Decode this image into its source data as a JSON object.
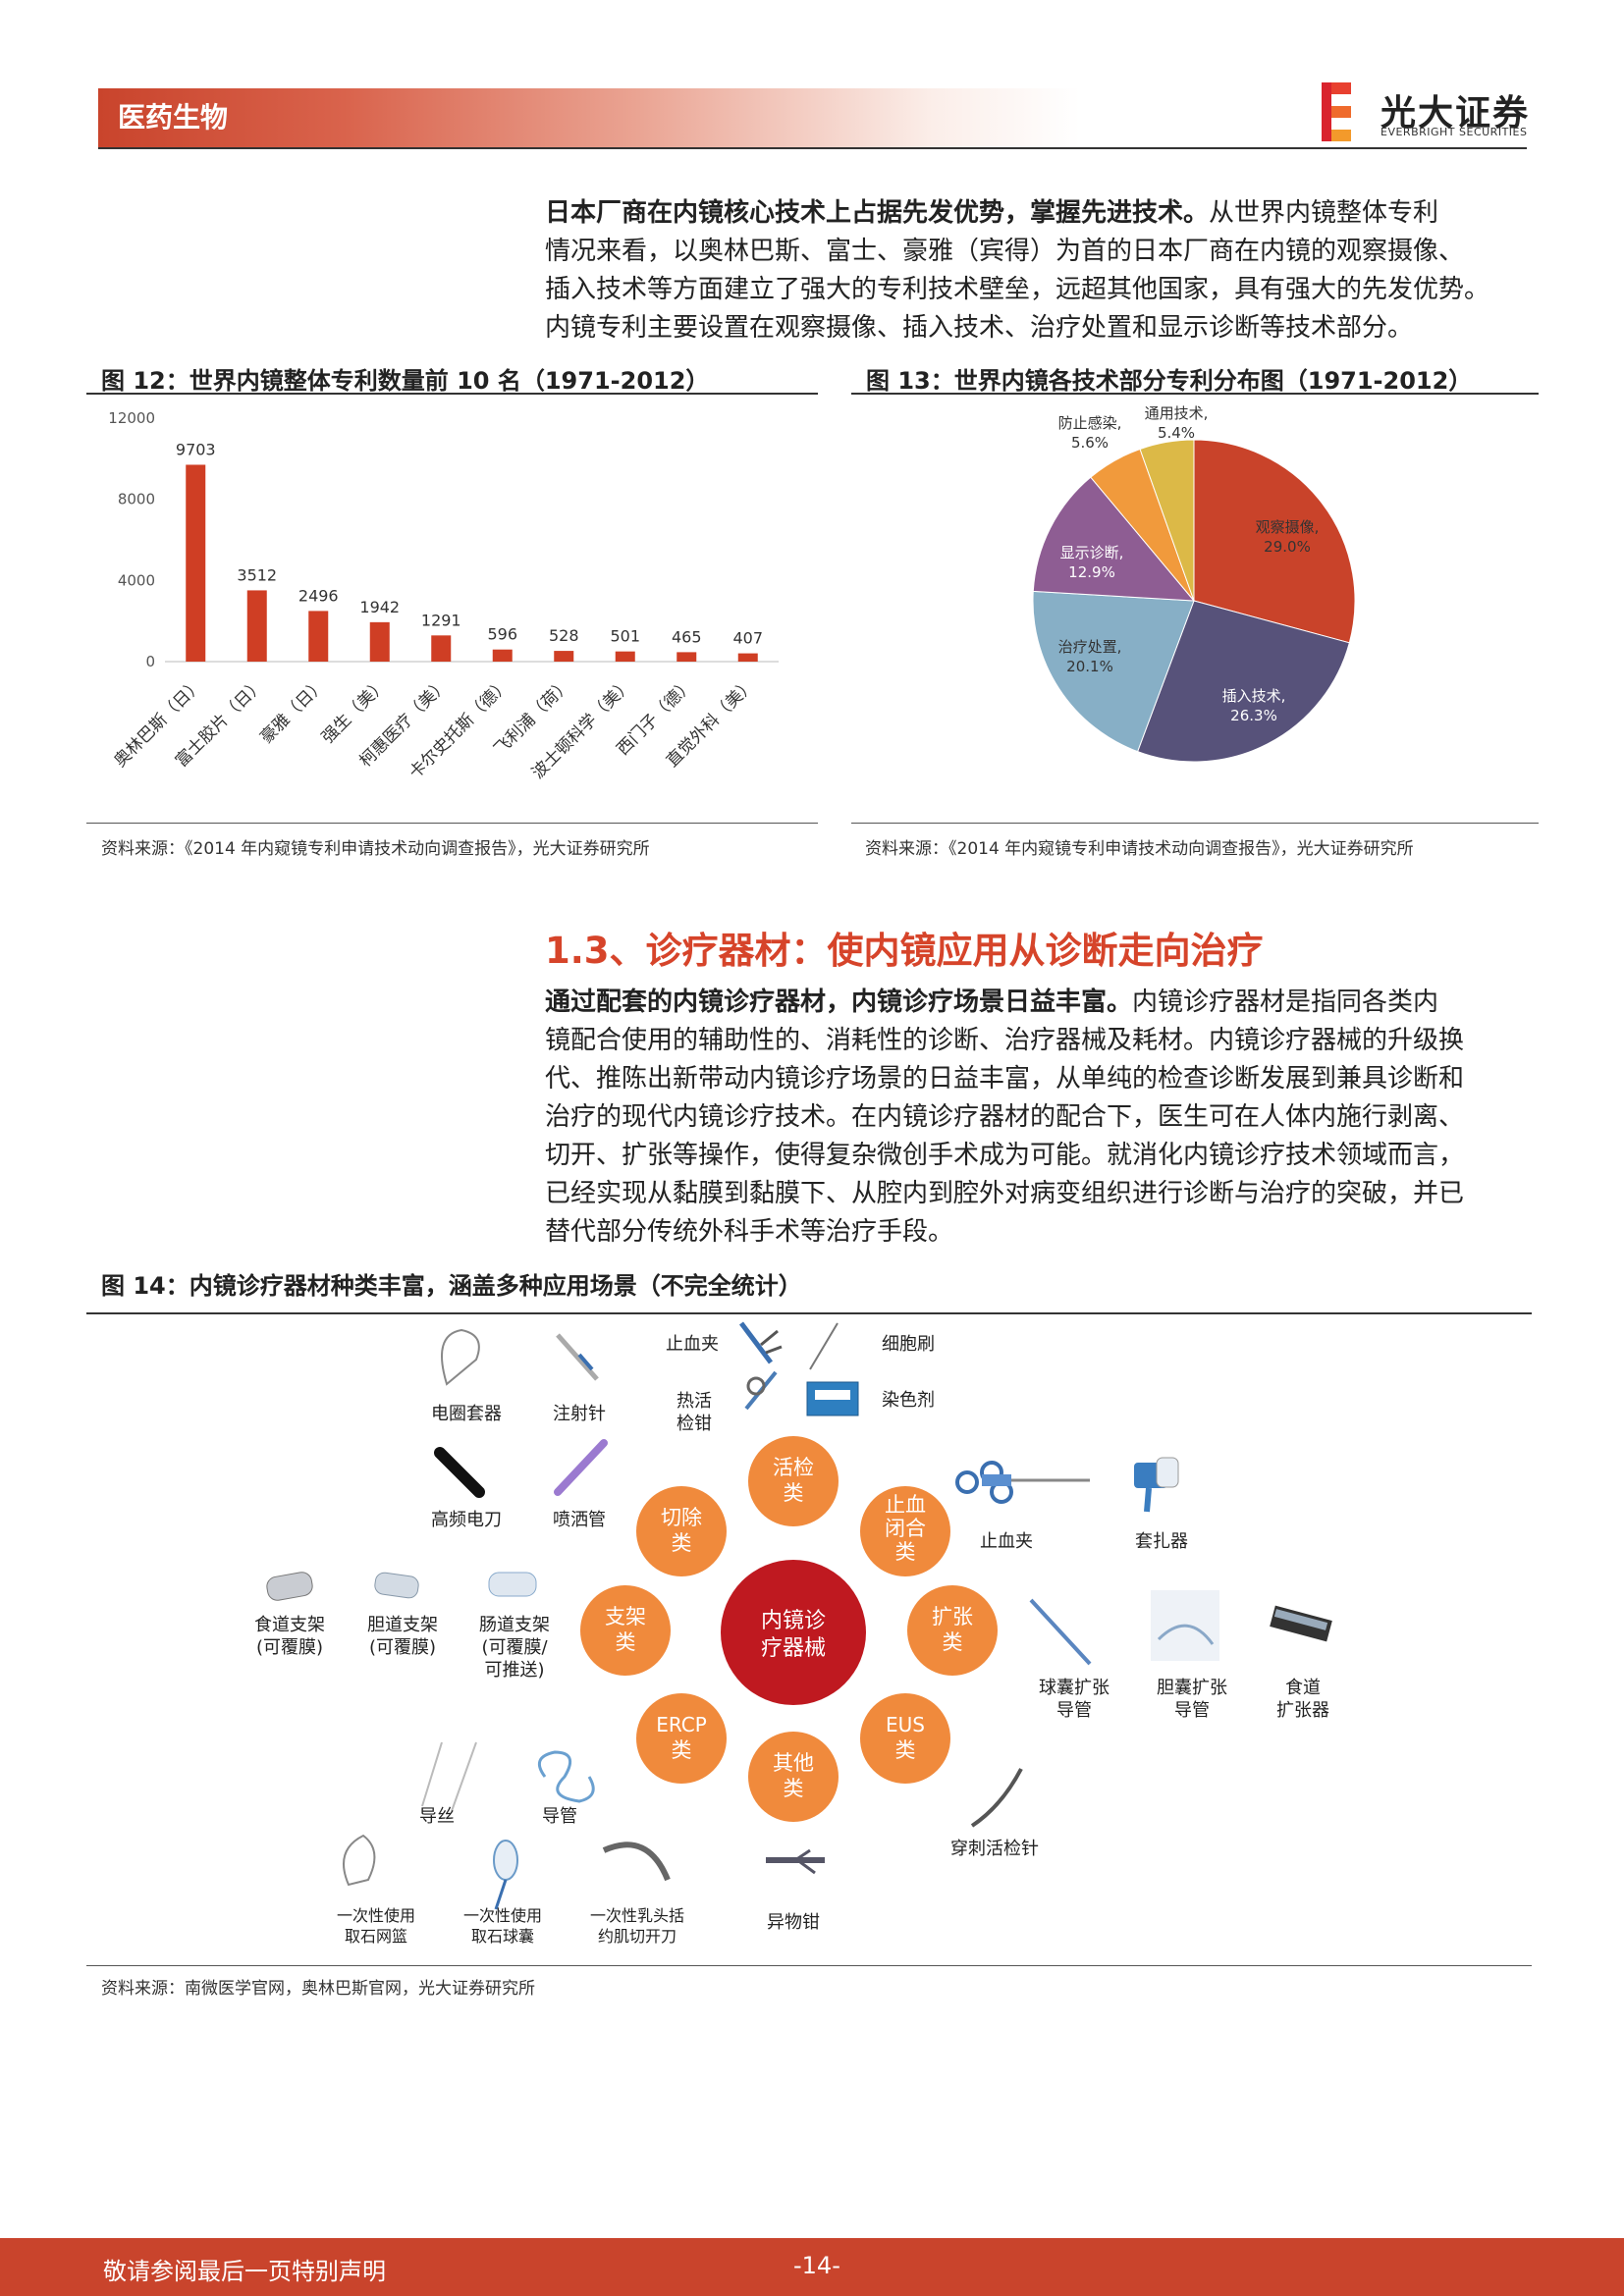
{
  "header": {
    "section": "医药生物",
    "brand_cn": "光大证券",
    "brand_en": "EVERBRIGHT SECURITIES"
  },
  "para1": {
    "bold": "日本厂商在内镜核心技术上占据先发优势，掌握先进技术。",
    "line1_rest": "从世界内镜整体专利",
    "line2": "情况来看，以奥林巴斯、富士、豪雅（宾得）为首的日本厂商在内镜的观察摄像、",
    "line3": "插入技术等方面建立了强大的专利技术壁垒，远超其他国家，具有强大的先发优势。",
    "line4": "内镜专利主要设置在观察摄像、插入技术、治疗处置和显示诊断等技术部分。"
  },
  "fig12": {
    "title": "图 12：世界内镜整体专利数量前 10 名（1971-2012）",
    "source": "资料来源：《2014 年内窥镜专利申请技术动向调查报告》，光大证券研究所"
  },
  "fig13": {
    "title": "图 13：世界内镜各技术部分专利分布图（1971-2012）",
    "source": "资料来源：《2014 年内窥镜专利申请技术动向调查报告》，光大证券研究所"
  },
  "chart_data": [
    {
      "type": "bar",
      "title": "图 12：世界内镜整体专利数量前 10 名（1971-2012）",
      "categories": [
        "奥林巴斯（日）",
        "富士胶片（日）",
        "豪雅（日）",
        "强生（美）",
        "柯惠医疗（美）",
        "卡尔史托斯（德）",
        "飞利浦（荷）",
        "波士顿科学（美）",
        "西门子（德）",
        "直觉外科（美）"
      ],
      "values": [
        9703,
        3512,
        2496,
        1942,
        1291,
        596,
        528,
        501,
        465,
        407
      ],
      "yticks": [
        "0",
        "4000",
        "8000",
        "12000"
      ],
      "ylim": [
        0,
        12000
      ],
      "color": "#cf3e24"
    },
    {
      "type": "pie",
      "title": "图 13：世界内镜各技术部分专利分布图（1971-2012）",
      "slices": [
        {
          "label": "观察摄像,",
          "pct": "29.0%",
          "value": 29.0,
          "color": "#c9432a"
        },
        {
          "label": "插入技术,",
          "pct": "26.3%",
          "value": 26.3,
          "color": "#57527a"
        },
        {
          "label": "治疗处置,",
          "pct": "20.1%",
          "value": 20.1,
          "color": "#87afc6"
        },
        {
          "label": "显示诊断,",
          "pct": "12.9%",
          "value": 12.9,
          "color": "#8e5d93"
        },
        {
          "label": "防止感染,",
          "pct": "5.6%",
          "value": 5.6,
          "color": "#f19a3c"
        },
        {
          "label": "通用技术,",
          "pct": "5.4%",
          "value": 5.4,
          "color": "#dcb947"
        }
      ]
    }
  ],
  "section": {
    "title": "1.3、诊疗器材：使内镜应用从诊断走向治疗"
  },
  "para2": {
    "bold": "通过配套的内镜诊疗器材，内镜诊疗场景日益丰富。",
    "line1_rest": "内镜诊疗器材是指同各类内",
    "line2": "镜配合使用的辅助性的、消耗性的诊断、治疗器械及耗材。内镜诊疗器械的升级换",
    "line3": "代、推陈出新带动内镜诊疗场景的日益丰富，从单纯的检查诊断发展到兼具诊断和",
    "line4": "治疗的现代内镜诊疗技术。在内镜诊疗器材的配合下，医生可在人体内施行剥离、",
    "line5": "切开、扩张等操作，使得复杂微创手术成为可能。就消化内镜诊疗技术领域而言，",
    "line6": "已经实现从黏膜到黏膜下、从腔内到腔外对病变组织进行诊断与治疗的突破，并已",
    "line7": "替代部分传统外科手术等治疗手段。"
  },
  "fig14": {
    "title": "图 14：内镜诊疗器材种类丰富，涵盖多种应用场景（不完全统计）",
    "source": "资料来源：南微医学官网，奥林巴斯官网，光大证券研究所",
    "center": [
      "内镜诊",
      "疗器械"
    ],
    "categories": {
      "huojian": [
        "活检",
        "类"
      ],
      "qiechu": [
        "切除",
        "类"
      ],
      "zhixue": [
        "止血",
        "闭合",
        "类"
      ],
      "zhijia": [
        "支架",
        "类"
      ],
      "kuozhang": [
        "扩张",
        "类"
      ],
      "ercp": [
        "ERCP",
        "类"
      ],
      "eus": [
        "EUS",
        "类"
      ],
      "qita": [
        "其他",
        "类"
      ]
    },
    "items": {
      "zhixuejia_top": "止血夹",
      "xiboshua": "细胞刷",
      "reguo": [
        "热活",
        "检钳"
      ],
      "ranseji": "染色剂",
      "dianquan": "电圈套器",
      "zhusheji": "注射针",
      "gaopin": "高频电刀",
      "pensa": "喷洒管",
      "zhixuejia": "止血夹",
      "taozha": "套扎器",
      "shidao_stent": [
        "食道支架",
        "(可覆膜)"
      ],
      "dandao_stent": [
        "胆道支架",
        "(可覆膜)"
      ],
      "changdao_stent": [
        "肠道支架",
        "(可覆膜/",
        "可推送)"
      ],
      "qiunang": [
        "球囊扩张",
        "导管"
      ],
      "dannang": [
        "胆囊扩张",
        "导管"
      ],
      "shidao_kz": [
        "食道",
        "扩张器"
      ],
      "daosi": "导丝",
      "daoguan": "导管",
      "chuanci": "穿刺活检针",
      "wanglan": [
        "一次性使用",
        "取石网篮"
      ],
      "qiunang_qs": [
        "一次性使用",
        "取石球囊"
      ],
      "rutou": [
        "一次性乳头括",
        "约肌切开刀"
      ],
      "yiwu": "异物钳"
    }
  },
  "footer": {
    "disclaimer": "敬请参阅最后一页特别声明",
    "page": "-14-"
  }
}
